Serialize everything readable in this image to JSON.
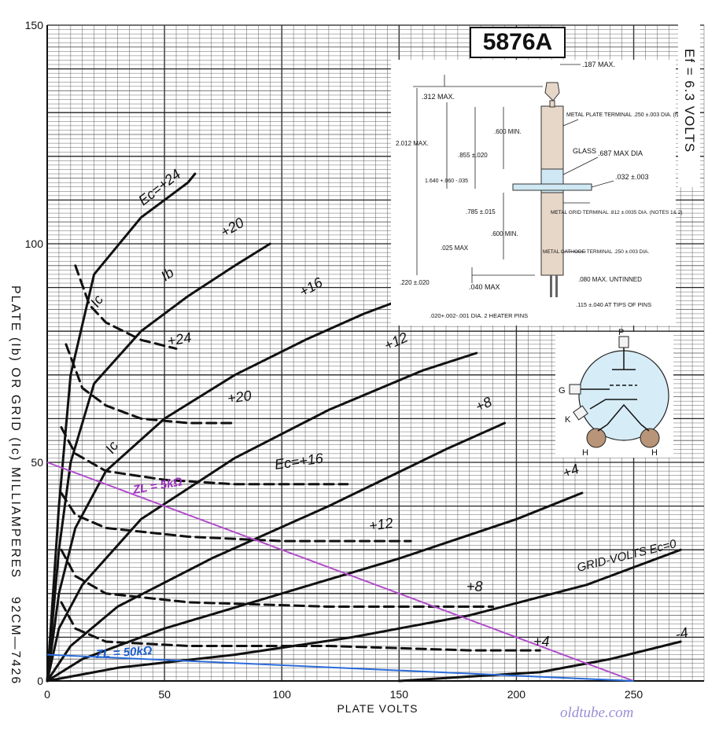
{
  "part_number": "5876A",
  "heater_label": "Ef = 6.3 VOLTS",
  "figure_code": "92CM—7426",
  "watermark": "oldtube.com",
  "inset_labels": {
    "d187": ".187 MAX.",
    "d312": ".312 MAX.",
    "d2012": "2.012 MAX.",
    "d600a": ".600 MIN.",
    "d855": ".855 ±.020",
    "d1640": "1.640 +.060 -.035",
    "metal_plate": "METAL PLATE TERMINAL .250 ±.003 DIA. (NOTE 1)",
    "glass": "GLASS",
    "d687": ".687 MAX DIA",
    "d032": ".032 ±.003",
    "d785": ".785 ±.015",
    "grid_terminal": "METAL GRID TERMINAL .812 ±.0035 DIA. (NOTES 1& 2)",
    "d025": ".025 MAX",
    "d600b": ".600 MIN.",
    "cathode_terminal": "METAL CATHODE TERMINAL .250 ±.003 DIA.",
    "d220": ".220 ±.020",
    "d040": ".040 MAX",
    "d080": ".080 MAX. UNTINNED",
    "heater_pins": ".020+.002-.001 DIA. 2 HEATER PINS",
    "d115": ".115 ±.040 AT TIPS OF PINS"
  },
  "base_pins": {
    "p": "P",
    "g": "G",
    "k": "K",
    "h1": "H",
    "h2": "H"
  },
  "curve_labels": {
    "ec24": "Ec=+24",
    "p20": "+20",
    "p16": "+16",
    "p12": "+12",
    "p8": "+8",
    "p4": "+4",
    "grid0": "GRID-VOLTS Ec=0",
    "m4": "-4",
    "ib": "Ib",
    "ic": "Ic",
    "ic2": "Ic",
    "ic24": "+24",
    "ic20": "+20",
    "ic16": "Ec=+16",
    "ic12": "+12",
    "ic8": "+8",
    "ic4": "+4",
    "zl5k": "ZL = 5kΩ",
    "zl50k": "ZL = 50kΩ"
  },
  "chart_data": {
    "type": "line",
    "title": "5876A",
    "xlabel": "PLATE VOLTS",
    "ylabel": "PLATE (Ib) OR GRID (Ic) MILLIAMPERES",
    "xlim": [
      0,
      280
    ],
    "ylim": [
      0,
      150
    ],
    "x_ticks": [
      0,
      50,
      100,
      150,
      200,
      250
    ],
    "y_ticks": [
      0,
      50,
      100,
      150
    ],
    "grid": true,
    "plate_current_series": [
      {
        "name": "Ec=+24",
        "points": [
          [
            0,
            0
          ],
          [
            5,
            40
          ],
          [
            10,
            70
          ],
          [
            20,
            93
          ],
          [
            40,
            106
          ],
          [
            60,
            114
          ],
          [
            63,
            116
          ]
        ]
      },
      {
        "name": "+20",
        "points": [
          [
            0,
            0
          ],
          [
            5,
            30
          ],
          [
            10,
            50
          ],
          [
            20,
            68
          ],
          [
            40,
            80
          ],
          [
            60,
            88
          ],
          [
            80,
            95
          ],
          [
            95,
            100
          ]
        ]
      },
      {
        "name": "+16",
        "points": [
          [
            0,
            0
          ],
          [
            5,
            20
          ],
          [
            12,
            35
          ],
          [
            25,
            48
          ],
          [
            50,
            60
          ],
          [
            80,
            70
          ],
          [
            110,
            78
          ],
          [
            135,
            84
          ],
          [
            155,
            88
          ]
        ]
      },
      {
        "name": "+12",
        "points": [
          [
            0,
            0
          ],
          [
            5,
            12
          ],
          [
            15,
            22
          ],
          [
            40,
            37
          ],
          [
            80,
            51
          ],
          [
            120,
            62
          ],
          [
            160,
            71
          ],
          [
            183,
            75
          ]
        ]
      },
      {
        "name": "+8",
        "points": [
          [
            0,
            0
          ],
          [
            10,
            8
          ],
          [
            30,
            17
          ],
          [
            70,
            28
          ],
          [
            120,
            40
          ],
          [
            170,
            53
          ],
          [
            195,
            59
          ]
        ]
      },
      {
        "name": "+4",
        "points": [
          [
            0,
            0
          ],
          [
            15,
            5
          ],
          [
            50,
            12
          ],
          [
            100,
            20
          ],
          [
            150,
            28
          ],
          [
            200,
            37
          ],
          [
            228,
            43
          ]
        ]
      },
      {
        "name": "Ec=0",
        "points": [
          [
            0,
            0
          ],
          [
            30,
            3
          ],
          [
            80,
            6
          ],
          [
            130,
            10
          ],
          [
            180,
            15
          ],
          [
            230,
            22
          ],
          [
            270,
            30
          ]
        ]
      },
      {
        "name": "-4",
        "points": [
          [
            150,
            0
          ],
          [
            180,
            1
          ],
          [
            210,
            2
          ],
          [
            240,
            5
          ],
          [
            270,
            9
          ]
        ]
      }
    ],
    "grid_current_series": [
      {
        "name": "Ic +24",
        "points": [
          [
            12,
            95
          ],
          [
            18,
            86
          ],
          [
            25,
            82
          ],
          [
            40,
            78
          ],
          [
            55,
            76
          ]
        ]
      },
      {
        "name": "Ic +20",
        "points": [
          [
            8,
            77
          ],
          [
            15,
            67
          ],
          [
            25,
            63
          ],
          [
            40,
            60
          ],
          [
            60,
            59
          ],
          [
            80,
            59
          ]
        ]
      },
      {
        "name": "Ic +16",
        "points": [
          [
            6,
            58
          ],
          [
            12,
            52
          ],
          [
            25,
            48
          ],
          [
            50,
            46
          ],
          [
            80,
            45
          ],
          [
            110,
            45
          ],
          [
            128,
            45
          ]
        ]
      },
      {
        "name": "Ic +12",
        "points": [
          [
            6,
            43
          ],
          [
            12,
            38
          ],
          [
            25,
            35
          ],
          [
            60,
            33
          ],
          [
            100,
            32
          ],
          [
            140,
            32
          ],
          [
            155,
            32
          ]
        ]
      },
      {
        "name": "Ic +8",
        "points": [
          [
            6,
            30
          ],
          [
            12,
            24
          ],
          [
            25,
            20
          ],
          [
            60,
            18
          ],
          [
            120,
            17
          ],
          [
            180,
            17
          ],
          [
            190,
            17
          ]
        ]
      },
      {
        "name": "Ic +4",
        "points": [
          [
            6,
            18
          ],
          [
            12,
            12
          ],
          [
            25,
            9
          ],
          [
            60,
            8
          ],
          [
            120,
            8
          ],
          [
            180,
            7
          ],
          [
            210,
            7
          ]
        ]
      }
    ],
    "load_lines": [
      {
        "name": "ZL = 5kΩ",
        "points": [
          [
            0,
            50
          ],
          [
            250,
            0
          ]
        ],
        "color": "#b24ccc"
      },
      {
        "name": "ZL = 50kΩ",
        "points": [
          [
            0,
            6
          ],
          [
            250,
            0
          ]
        ],
        "color": "#2a6bd9"
      }
    ],
    "colors": {
      "curves": "#111111",
      "load_5k": "#b24ccc",
      "load_50k": "#2a6bd9",
      "watermark": "#9a8fd6"
    }
  }
}
